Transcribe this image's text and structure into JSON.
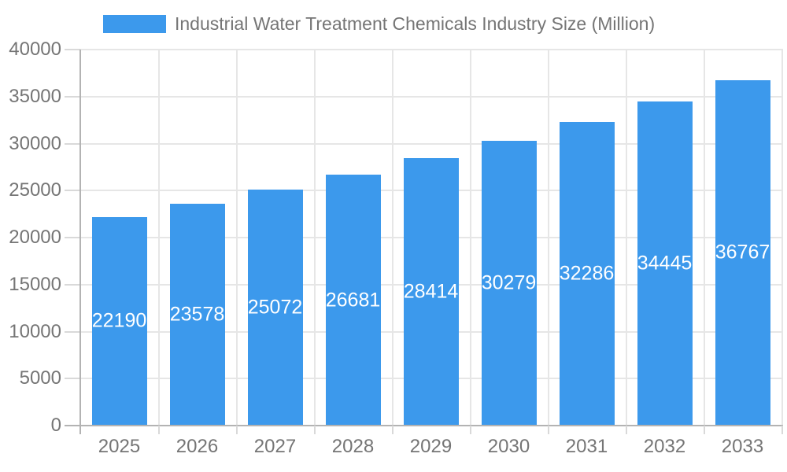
{
  "chart_data": {
    "type": "bar",
    "title": "",
    "legend": {
      "label": "Industrial Water Treatment Chemicals Industry Size (Million)",
      "position": "top"
    },
    "categories": [
      "2025",
      "2026",
      "2027",
      "2028",
      "2029",
      "2030",
      "2031",
      "2032",
      "2033"
    ],
    "values": [
      22190,
      23578,
      25072,
      26681,
      28414,
      30279,
      32286,
      34445,
      36767
    ],
    "xlabel": "",
    "ylabel": "",
    "ylim": [
      0,
      40000
    ],
    "ytick_step": 5000,
    "yticks": [
      "0",
      "5000",
      "10000",
      "15000",
      "20000",
      "25000",
      "30000",
      "35000",
      "40000"
    ],
    "grid": true,
    "bar_labels_inside": true,
    "colors": {
      "bar": "#3C99EC",
      "bar_label": "#ffffff",
      "axis_text": "#757575",
      "gridline": "#e6e6e6",
      "axis_line": "#b3b3b3",
      "tick": "#d9d9d9"
    }
  }
}
